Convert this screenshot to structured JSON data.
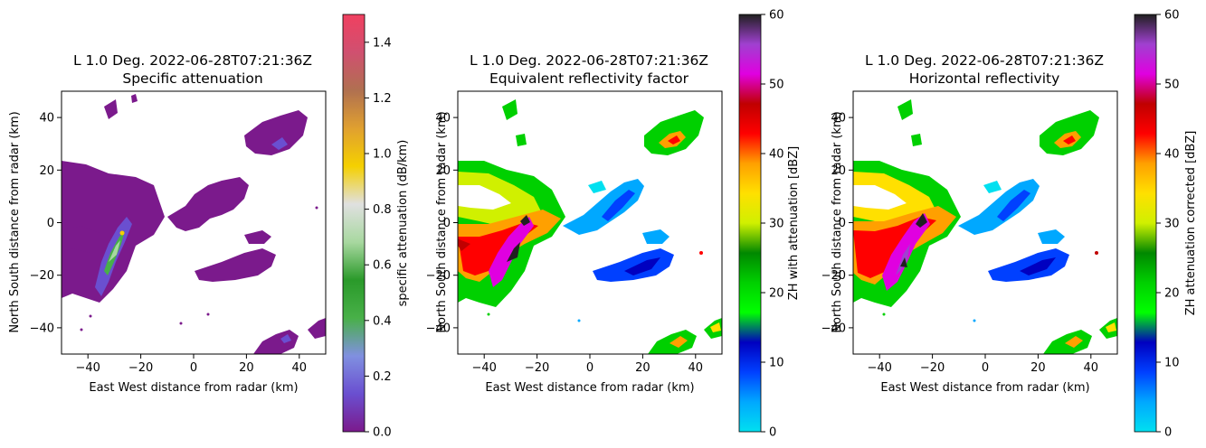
{
  "figure": {
    "panels": [
      {
        "title_line1": "L 1.0 Deg. 2022-06-28T07:21:36Z",
        "title_line2": "Specific attenuation",
        "xlabel": "East West distance from radar (km)",
        "ylabel": "North South distance from radar (km)",
        "colorbar_label": "specific attenuation (dB/km)"
      },
      {
        "title_line1": "L 1.0 Deg. 2022-06-28T07:21:36Z",
        "title_line2": "Equivalent reflectivity factor",
        "xlabel": "East West distance from radar (km)",
        "ylabel": "North South distance from radar (km)",
        "colorbar_label": "ZH with attenuation [dBZ]"
      },
      {
        "title_line1": "L 1.0 Deg. 2022-06-28T07:21:36Z",
        "title_line2": "Horizontal reflectivity",
        "xlabel": "East West distance from radar (km)",
        "ylabel": "North South distance from radar (km)",
        "colorbar_label": "ZH attenuation corrected [dBZ]"
      }
    ]
  },
  "chart_data": [
    {
      "type": "heatmap",
      "title": "L 1.0 Deg. 2022-06-28T07:21:36Z Specific attenuation",
      "xlabel": "East West distance from radar (km)",
      "ylabel": "North South distance from radar (km)",
      "xlim": [
        -50,
        50
      ],
      "ylim": [
        -50,
        50
      ],
      "xticks": [
        -40,
        -20,
        0,
        20,
        40
      ],
      "yticks": [
        -40,
        -20,
        0,
        20,
        40
      ],
      "colorbar": {
        "label": "specific attenuation (dB/km)",
        "range": [
          0.0,
          1.5
        ],
        "ticks": [
          "0.0",
          "0.2",
          "0.4",
          "0.6",
          "0.8",
          "1.0",
          "1.2",
          "1.4"
        ],
        "colors": [
          "#7b1a8c",
          "#6a4fd0",
          "#8090e0",
          "#48b048",
          "#2a9a2a",
          "#a8d8a0",
          "#e0e0e0",
          "#f5d000",
          "#e0a030",
          "#b07050",
          "#d05070",
          "#f04060"
        ]
      },
      "regions": [
        {
          "x": -38,
          "y": 0,
          "value": 0.05
        },
        {
          "x": -28,
          "y": -15,
          "value": 0.5
        },
        {
          "x": 10,
          "y": 10,
          "value": 0.05
        },
        {
          "x": 32,
          "y": 30,
          "value": 0.1
        },
        {
          "x": 35,
          "y": -45,
          "value": 0.2
        }
      ]
    },
    {
      "type": "heatmap",
      "title": "L 1.0 Deg. 2022-06-28T07:21:36Z Equivalent reflectivity factor",
      "xlabel": "East West distance from radar (km)",
      "ylabel": "North South distance from radar (km)",
      "xlim": [
        -50,
        50
      ],
      "ylim": [
        -50,
        50
      ],
      "xticks": [
        -40,
        -20,
        0,
        20,
        40
      ],
      "yticks": [
        -40,
        -20,
        0,
        20,
        40
      ],
      "colorbar": {
        "label": "ZH with attenuation [dBZ]",
        "range": [
          0,
          60
        ],
        "ticks": [
          "0",
          "10",
          "20",
          "30",
          "40",
          "50",
          "60"
        ],
        "colors": [
          "#00e0f0",
          "#00a8ff",
          "#0040ff",
          "#0000c0",
          "#00ff00",
          "#00d000",
          "#008800",
          "#d0f000",
          "#ffe000",
          "#ffa000",
          "#ff0000",
          "#c00000",
          "#e000e0",
          "#a040d0",
          "#202020"
        ]
      },
      "regions": [
        {
          "x": -40,
          "y": 0,
          "value": 22
        },
        {
          "x": -28,
          "y": -15,
          "value": 50
        },
        {
          "x": 10,
          "y": 10,
          "value": 8
        },
        {
          "x": 32,
          "y": 30,
          "value": 35
        },
        {
          "x": 35,
          "y": -45,
          "value": 28
        }
      ]
    },
    {
      "type": "heatmap",
      "title": "L 1.0 Deg. 2022-06-28T07:21:36Z Horizontal reflectivity",
      "xlabel": "East West distance from radar (km)",
      "ylabel": "North South distance from radar (km)",
      "xlim": [
        -50,
        50
      ],
      "ylim": [
        -50,
        50
      ],
      "xticks": [
        -40,
        -20,
        0,
        20,
        40
      ],
      "yticks": [
        -40,
        -20,
        0,
        20,
        40
      ],
      "colorbar": {
        "label": "ZH attenuation corrected [dBZ]",
        "range": [
          0,
          60
        ],
        "ticks": [
          "0",
          "10",
          "20",
          "30",
          "40",
          "50",
          "60"
        ],
        "colors": [
          "#00e0f0",
          "#00a8ff",
          "#0040ff",
          "#0000c0",
          "#00ff00",
          "#00d000",
          "#008800",
          "#d0f000",
          "#ffe000",
          "#ffa000",
          "#ff0000",
          "#c00000",
          "#e000e0",
          "#a040d0",
          "#202020"
        ]
      },
      "regions": [
        {
          "x": -40,
          "y": 0,
          "value": 30
        },
        {
          "x": -28,
          "y": -15,
          "value": 55
        },
        {
          "x": 10,
          "y": 10,
          "value": 10
        },
        {
          "x": 32,
          "y": 30,
          "value": 40
        },
        {
          "x": 35,
          "y": -45,
          "value": 30
        }
      ]
    }
  ]
}
